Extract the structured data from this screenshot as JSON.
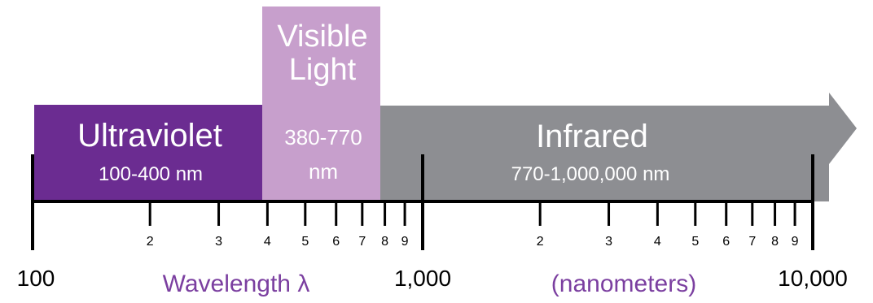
{
  "colors": {
    "ultraviolet": "#6b2c91",
    "visible": "#c79fcc",
    "infrared": "#8d8e92",
    "caption": "#7b3fa0",
    "axis": "#000000"
  },
  "bands": {
    "ultraviolet": {
      "title": "Ultraviolet",
      "range": "100-400 nm"
    },
    "visible": {
      "title_line1": "Visible",
      "title_line2": "Light",
      "range_line1": "380-770",
      "range_line2": "nm"
    },
    "infrared": {
      "title": "Infrared",
      "range": "770-1,000,000 nm"
    }
  },
  "axis": {
    "scale": "log",
    "decades": [
      {
        "start_label": "100",
        "end_label": "1,000",
        "minor_labels": [
          "2",
          "3",
          "4",
          "5",
          "6",
          "7",
          "8",
          "9"
        ]
      },
      {
        "start_label": "1,000",
        "end_label": "10,000",
        "minor_labels": [
          "2",
          "3",
          "4",
          "5",
          "6",
          "7",
          "8",
          "9"
        ]
      }
    ],
    "major_labels": [
      "100",
      "1,000",
      "10,000"
    ]
  },
  "captions": {
    "wavelength": "Wavelength λ",
    "units": "(nanometers)"
  }
}
